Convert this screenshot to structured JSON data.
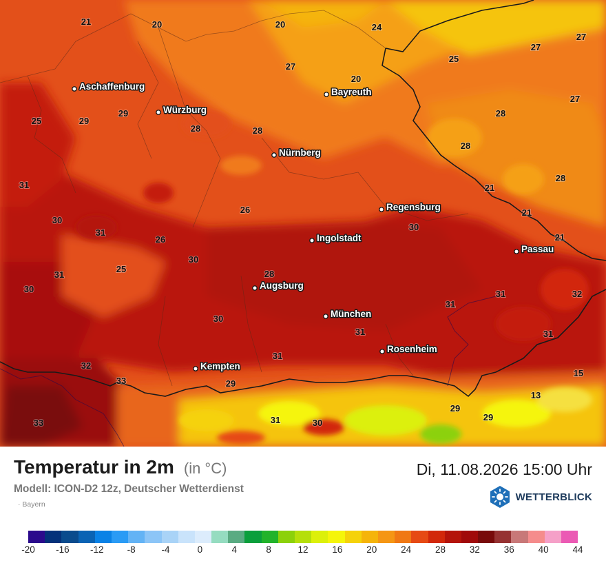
{
  "map": {
    "region": "Bayern",
    "cities": [
      {
        "name": "Aschaffenburg"
      },
      {
        "name": "Würzburg"
      },
      {
        "name": "Bayreuth"
      },
      {
        "name": "Nürnberg"
      },
      {
        "name": "Regensburg"
      },
      {
        "name": "Ingolstadt"
      },
      {
        "name": "Passau"
      },
      {
        "name": "Augsburg"
      },
      {
        "name": "München"
      },
      {
        "name": "Rosenheim"
      },
      {
        "name": "Kempten"
      }
    ],
    "values": [
      "21",
      "20",
      "20",
      "24",
      "27",
      "25",
      "27",
      "27",
      "20",
      "27",
      "25",
      "29",
      "29",
      "28",
      "28",
      "28",
      "28",
      "31",
      "21",
      "28",
      "30",
      "26",
      "21",
      "30",
      "31",
      "26",
      "21",
      "31",
      "25",
      "30",
      "28",
      "30",
      "31",
      "32",
      "30",
      "31",
      "31",
      "31",
      "31",
      "32",
      "33",
      "29",
      "15",
      "13",
      "33",
      "31",
      "30",
      "29",
      "29"
    ]
  },
  "footer": {
    "title": "Temperatur in 2m",
    "unit": "(in °C)",
    "datetime": "Di, 11.08.2026 15:00 Uhr",
    "model": "Modell: ICON-D2 12z, Deutscher Wetterdienst",
    "region_label": "· Bayern",
    "brand": "WETTERBLICK"
  },
  "legend": {
    "colors": [
      "#2b0a8c",
      "#04317a",
      "#0a4b8d",
      "#0a63b4",
      "#0a82e6",
      "#2a9bf5",
      "#63b3f5",
      "#8cc5f7",
      "#a9d3f7",
      "#c9e3fb",
      "#dcecfc",
      "#95dcc0",
      "#5aab82",
      "#0a9f3c",
      "#22b32b",
      "#8cd10a",
      "#b5df0a",
      "#dcf00a",
      "#f5f50a",
      "#f5d20a",
      "#f5b40a",
      "#f59614",
      "#f07814",
      "#e64a14",
      "#d2280a",
      "#b4140a",
      "#a00a0a",
      "#780a0a",
      "#963232",
      "#c87878",
      "#f58c8c",
      "#f5a0c8",
      "#eb5ab4"
    ],
    "ticks": [
      "-20",
      "-16",
      "-12",
      "-8",
      "-4",
      "0",
      "4",
      "8",
      "12",
      "16",
      "20",
      "24",
      "28",
      "32",
      "36",
      "40",
      "44"
    ]
  }
}
